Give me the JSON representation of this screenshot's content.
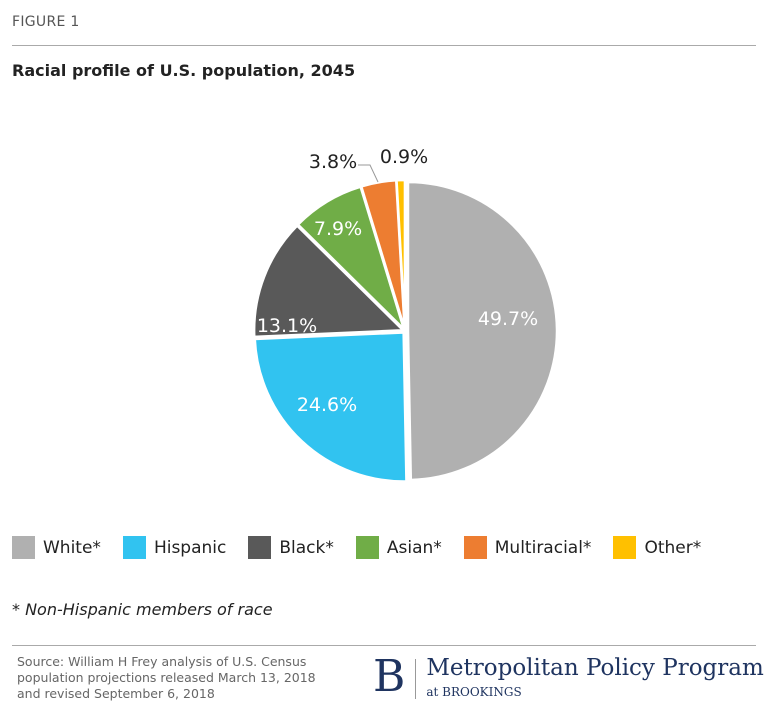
{
  "header": {
    "figure_label": "FIGURE 1"
  },
  "chart_data": {
    "type": "pie",
    "title": "Racial profile of U.S. population, 2045",
    "categories": [
      "White*",
      "Hispanic",
      "Black*",
      "Asian*",
      "Multiracial*",
      "Other*"
    ],
    "values": [
      49.7,
      24.6,
      13.1,
      7.9,
      3.8,
      0.9
    ],
    "data_labels": [
      "49.7%",
      "24.6%",
      "13.1%",
      "7.9%",
      "3.8%",
      "0.9%"
    ],
    "colors": [
      "#b0b0b0",
      "#31c3f0",
      "#595959",
      "#70ad47",
      "#ed7d31",
      "#ffc000"
    ],
    "start_angle": "12 o'clock",
    "direction": "clockwise",
    "legend": "bottom"
  },
  "footnote": "* Non-Hispanic members of race",
  "source": "Source: William H Frey analysis of U.S. Census population projections released March 13, 2018 and revised September 6, 2018",
  "logo": {
    "letter": "B",
    "name": "Metropolitan Policy Program",
    "sub": "at BROOKINGS"
  }
}
